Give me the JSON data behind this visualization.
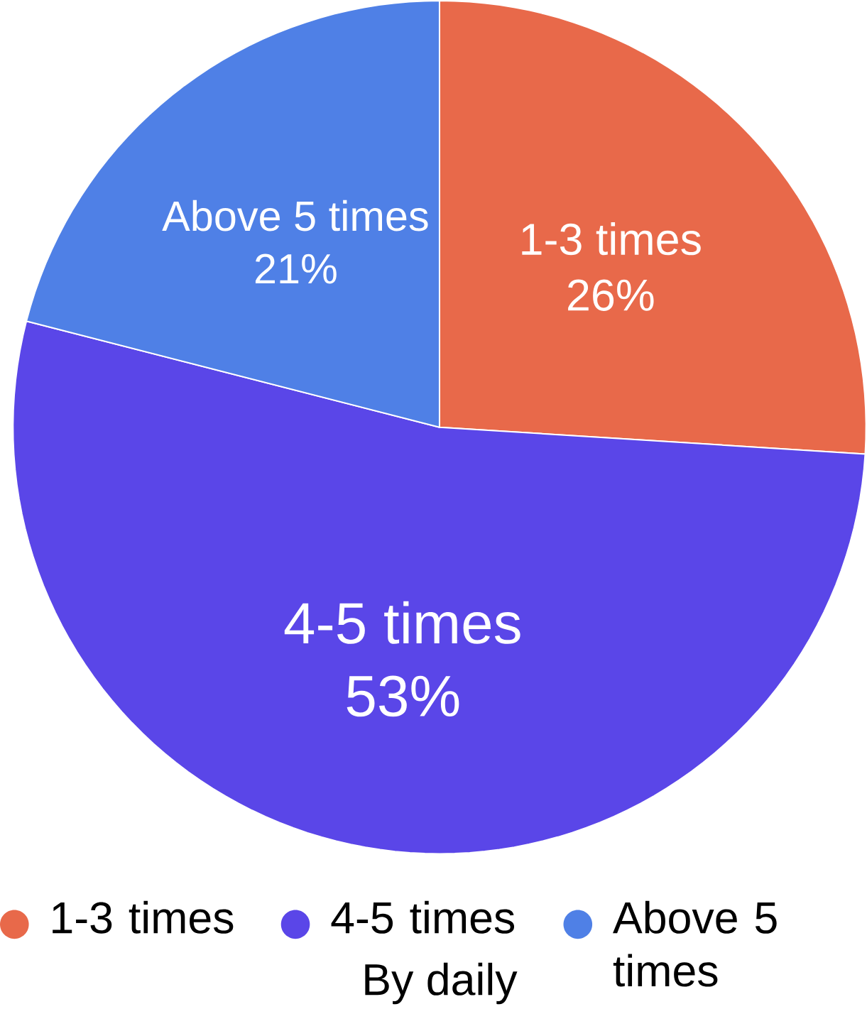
{
  "chart_data": {
    "type": "pie",
    "categories": [
      "1-3 times",
      "4-5 times",
      "Above 5 times"
    ],
    "values": [
      26,
      53,
      21
    ],
    "value_labels": [
      "26%",
      "53%",
      "21%"
    ],
    "colors": [
      "#e8694a",
      "#5a46e8",
      "#4f80e6"
    ],
    "legend": "bottom",
    "annotations": [
      "By daily"
    ]
  }
}
